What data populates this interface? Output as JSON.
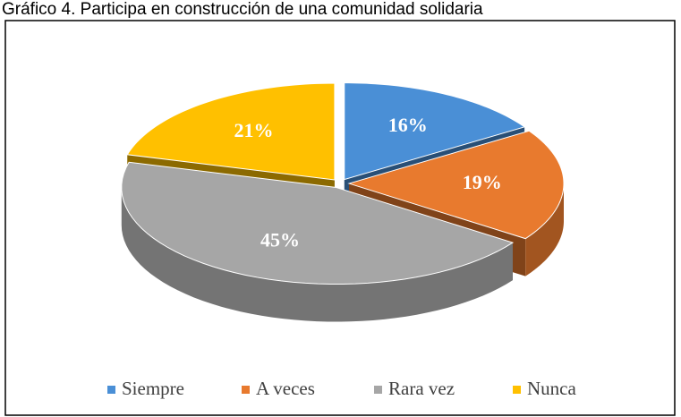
{
  "chart_data": {
    "type": "pie3d",
    "title": "Gráfico 4. Participa en construcción de una comunidad solidaria",
    "categories": [
      "Siempre",
      "A veces",
      "Rara vez",
      "Nunca"
    ],
    "values": [
      16,
      19,
      45,
      21
    ],
    "value_labels": [
      "16%",
      "19%",
      "45%",
      "21%"
    ],
    "colors": [
      "#4a8fd6",
      "#e87a2e",
      "#a6a6a6",
      "#ffc000"
    ],
    "legend": "bottom"
  }
}
